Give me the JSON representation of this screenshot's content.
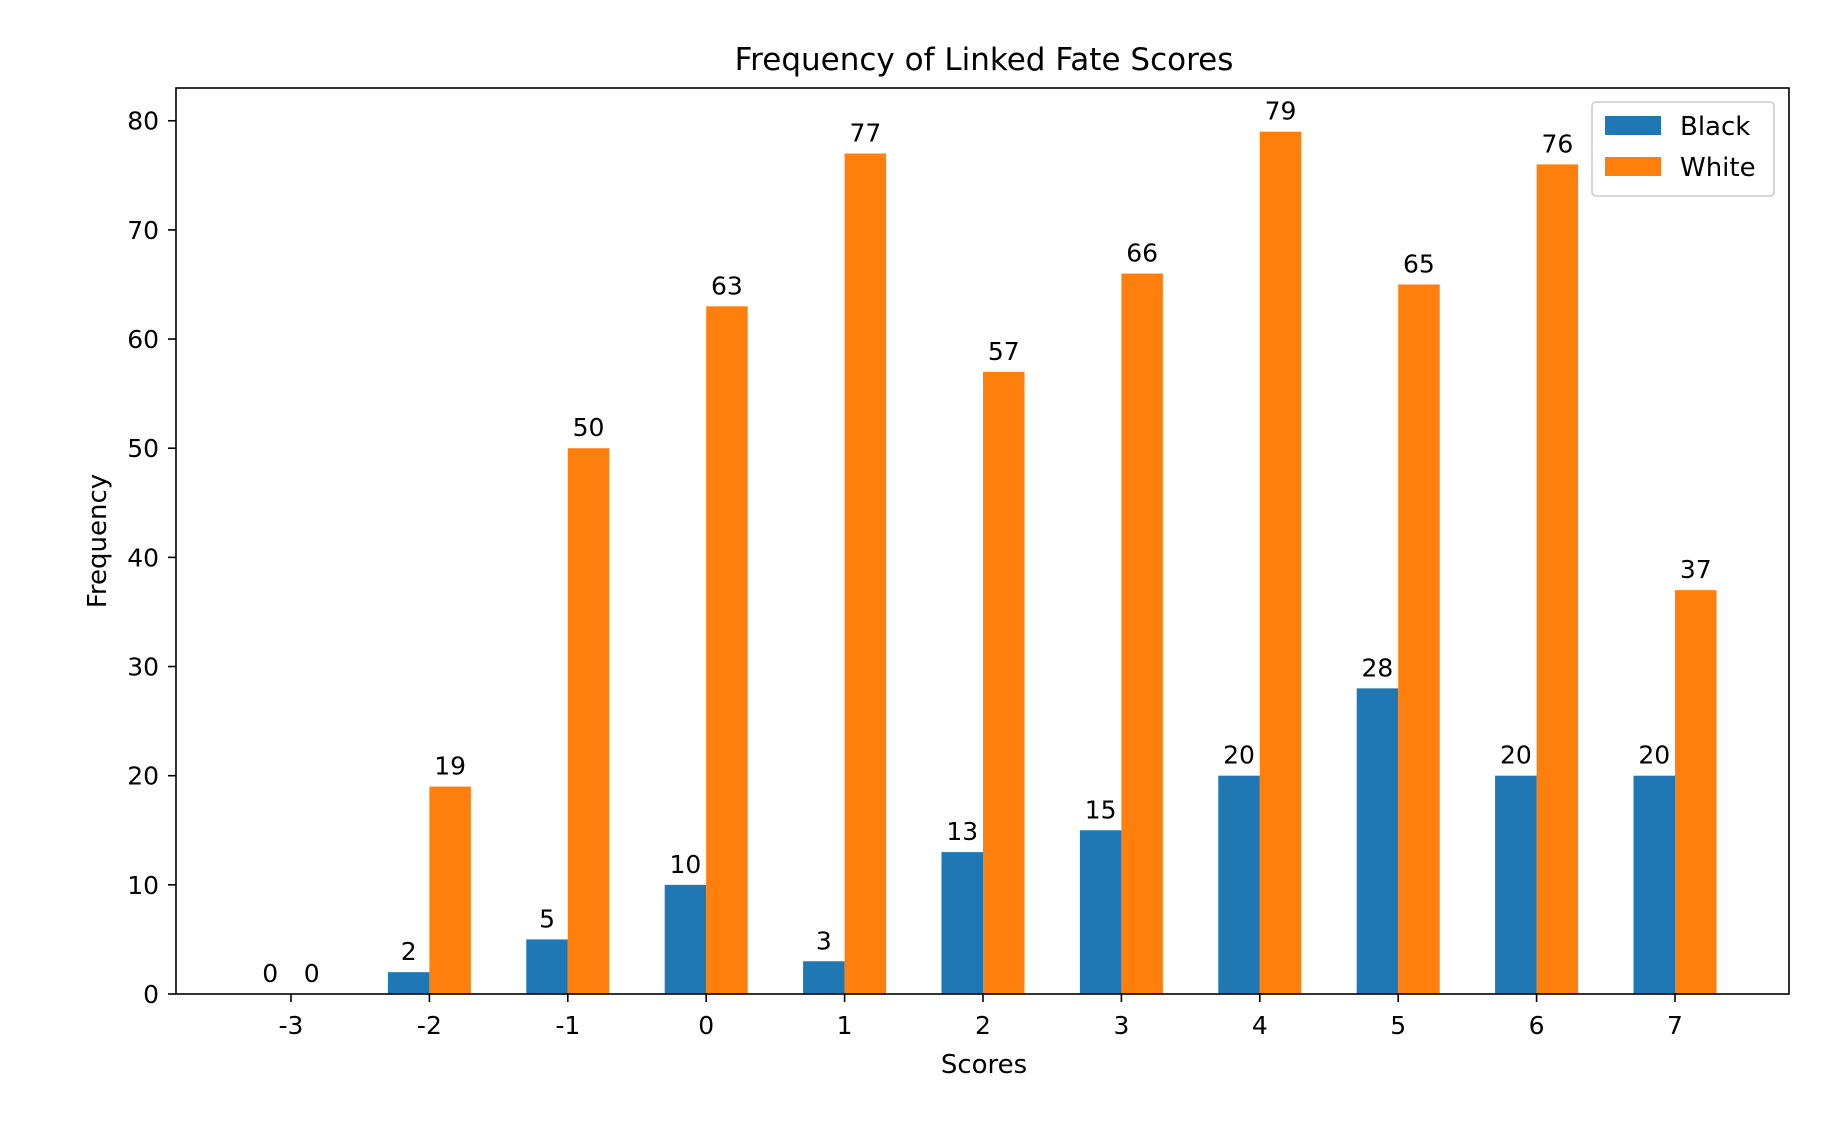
{
  "chart_data": {
    "type": "bar",
    "title": "Frequency of Linked Fate Scores",
    "xlabel": "Scores",
    "ylabel": "Frequency",
    "categories": [
      "-3",
      "-2",
      "-1",
      "0",
      "1",
      "2",
      "3",
      "4",
      "5",
      "6",
      "7"
    ],
    "series": [
      {
        "name": "Black",
        "color": "#1f77b4",
        "values": [
          0,
          2,
          5,
          10,
          3,
          13,
          15,
          20,
          28,
          20,
          20
        ]
      },
      {
        "name": "White",
        "color": "#ff7f0e",
        "values": [
          0,
          19,
          50,
          63,
          77,
          57,
          66,
          79,
          65,
          76,
          37
        ]
      }
    ],
    "ylim": [
      0,
      83
    ],
    "yticks": [
      0,
      10,
      20,
      30,
      40,
      50,
      60,
      70,
      80
    ],
    "grid": false,
    "legend_position": "top-right"
  }
}
